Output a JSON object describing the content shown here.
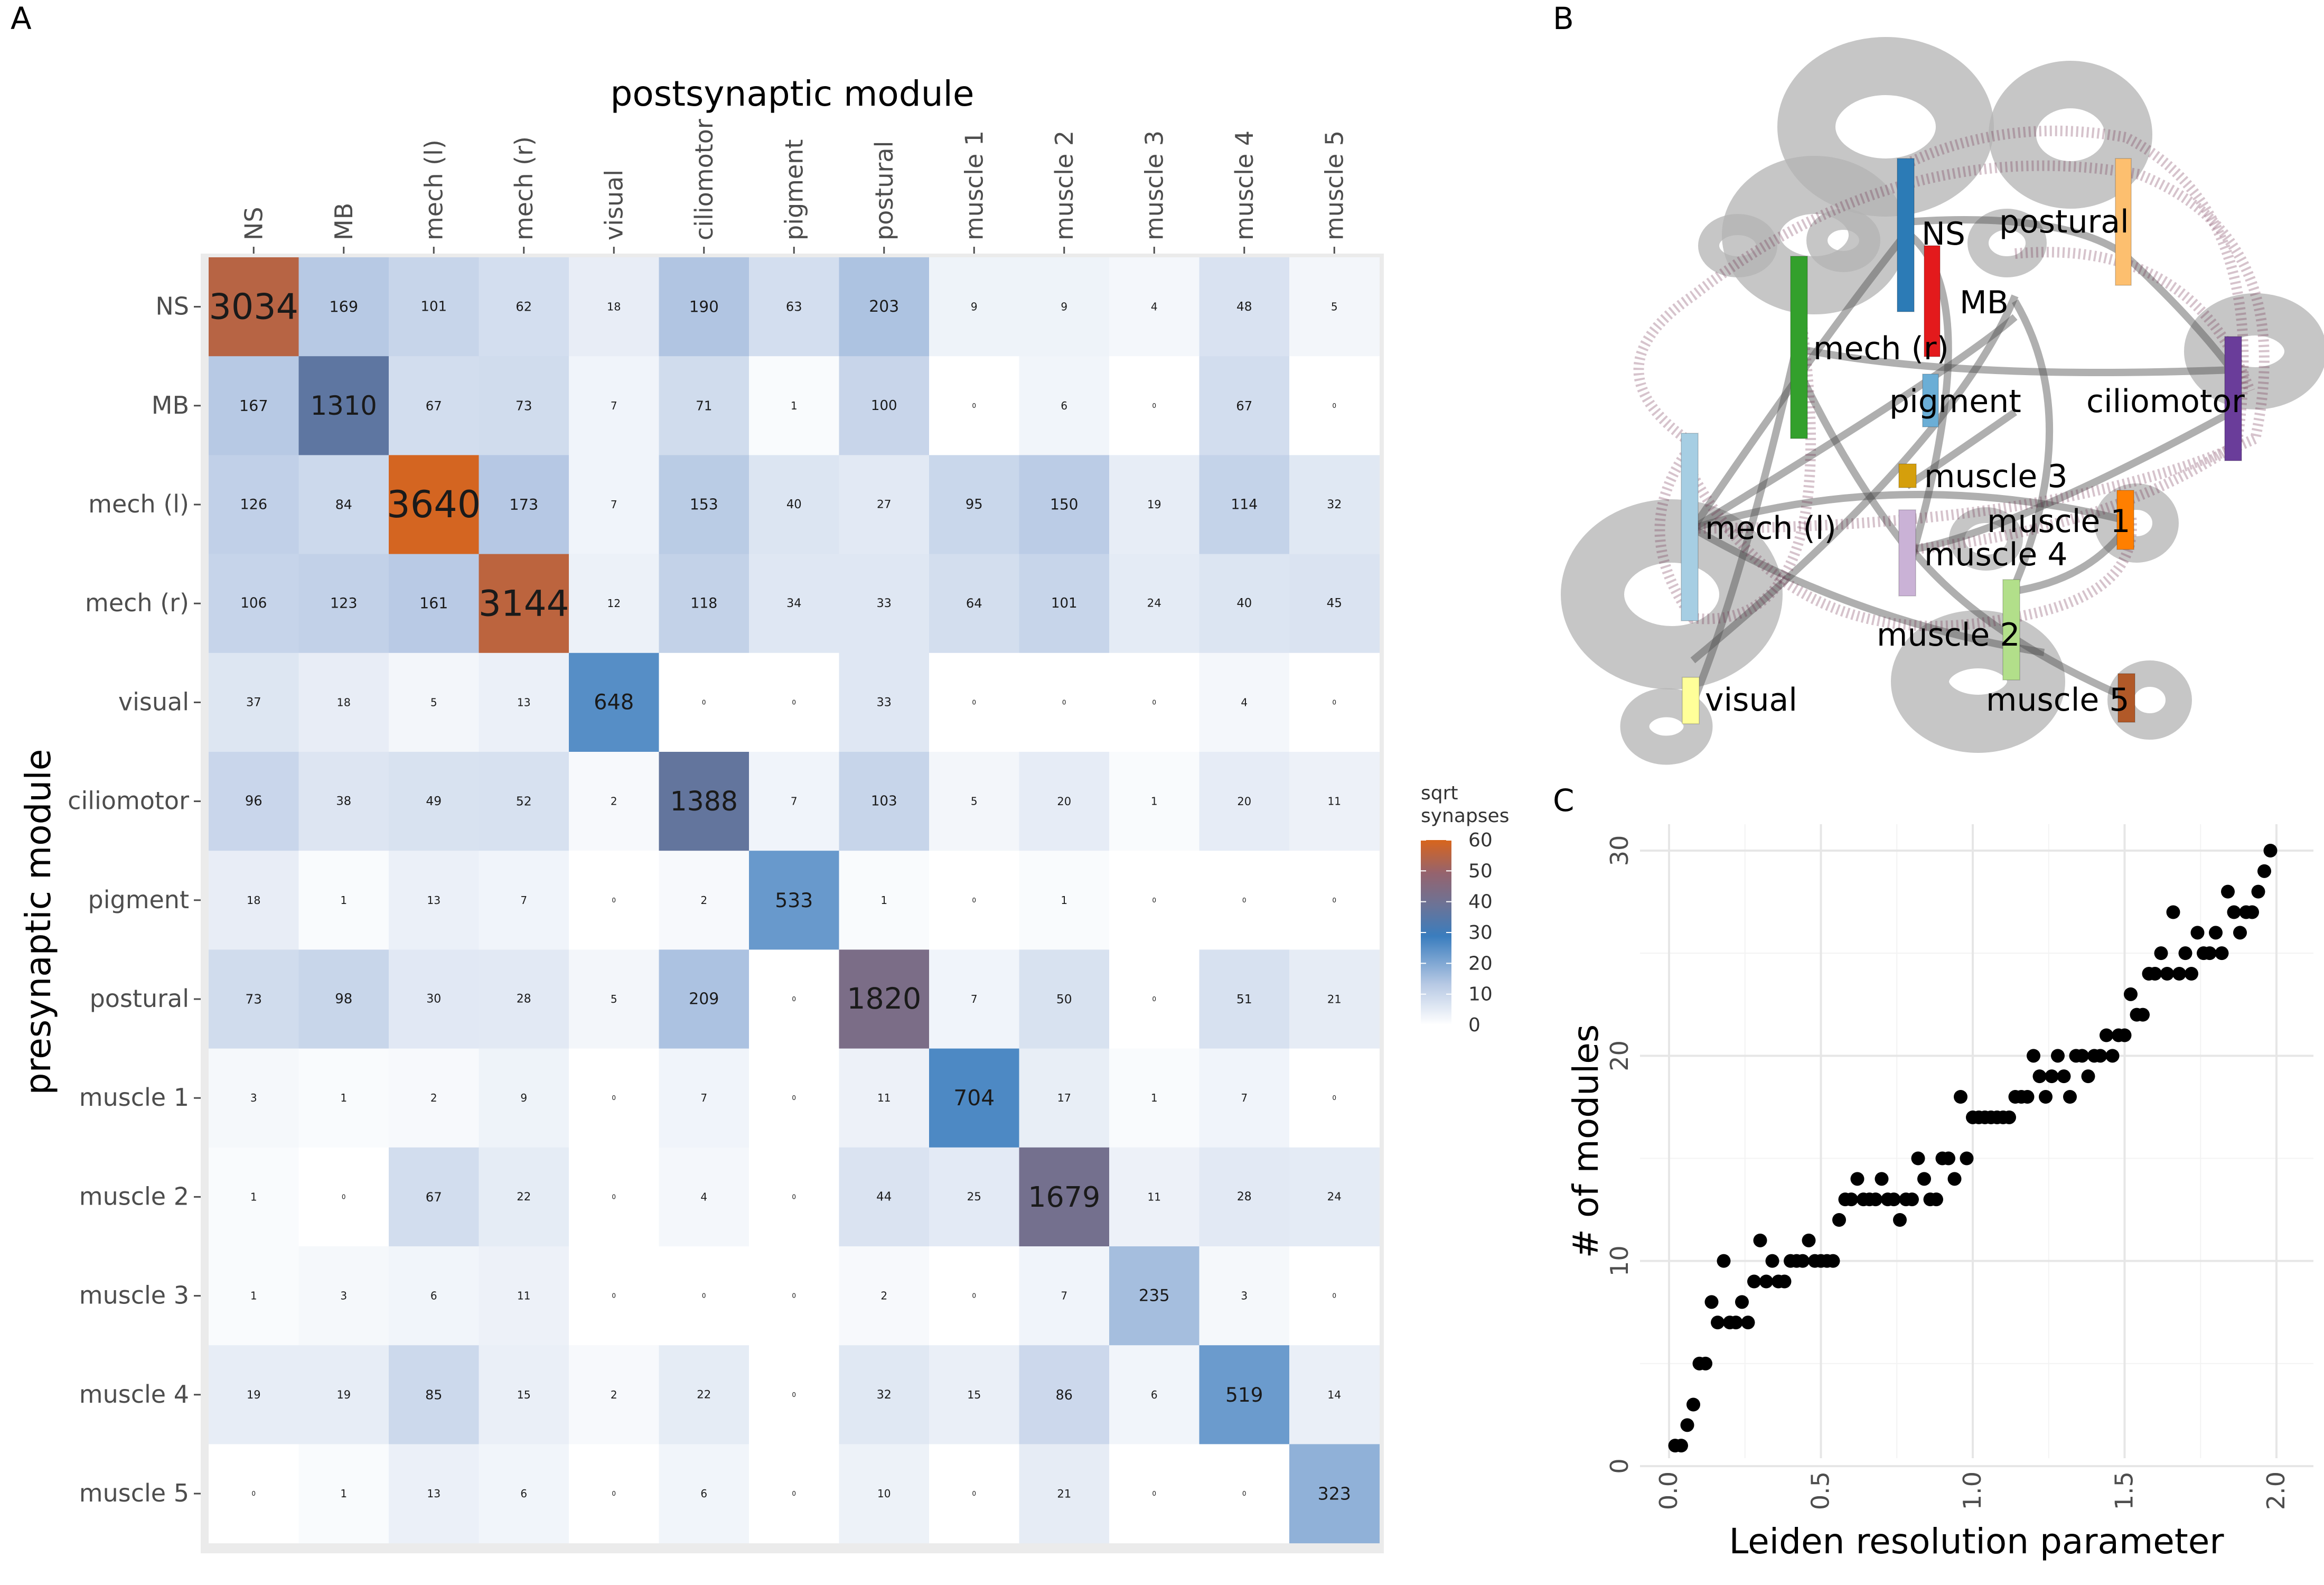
{
  "panels": {
    "a": "A",
    "b": "B",
    "c": "C"
  },
  "chart_data": [
    {
      "type": "heatmap",
      "title": "postsynaptic module",
      "xlabel": "postsynaptic module",
      "ylabel": "presynaptic module",
      "columns": [
        "NS",
        "MB",
        "mech (l)",
        "mech (r)",
        "visual",
        "ciliomotor",
        "pigment",
        "postural",
        "muscle 1",
        "muscle 2",
        "muscle 3",
        "muscle 4",
        "muscle 5"
      ],
      "rows": [
        "NS",
        "MB",
        "mech (l)",
        "mech (r)",
        "visual",
        "ciliomotor",
        "pigment",
        "postural",
        "muscle 1",
        "muscle 2",
        "muscle 3",
        "muscle 4",
        "muscle 5"
      ],
      "values": [
        [
          3034,
          169,
          101,
          62,
          18,
          190,
          63,
          203,
          9,
          9,
          4,
          48,
          5
        ],
        [
          167,
          1310,
          67,
          73,
          7,
          71,
          1,
          100,
          0,
          6,
          0,
          67,
          0
        ],
        [
          126,
          84,
          3640,
          173,
          7,
          153,
          40,
          27,
          95,
          150,
          19,
          114,
          32
        ],
        [
          106,
          123,
          161,
          3144,
          12,
          118,
          34,
          33,
          64,
          101,
          24,
          40,
          45
        ],
        [
          37,
          18,
          5,
          13,
          648,
          0,
          0,
          33,
          0,
          0,
          0,
          4,
          0
        ],
        [
          96,
          38,
          49,
          52,
          2,
          1388,
          7,
          103,
          5,
          20,
          1,
          20,
          11
        ],
        [
          18,
          1,
          13,
          7,
          0,
          2,
          533,
          1,
          0,
          1,
          0,
          0,
          0
        ],
        [
          73,
          98,
          30,
          28,
          5,
          209,
          0,
          1820,
          7,
          50,
          0,
          51,
          21
        ],
        [
          3,
          1,
          2,
          9,
          0,
          7,
          0,
          11,
          704,
          17,
          1,
          7,
          0
        ],
        [
          1,
          0,
          67,
          22,
          0,
          4,
          0,
          44,
          25,
          1679,
          11,
          28,
          24
        ],
        [
          1,
          3,
          6,
          11,
          0,
          0,
          0,
          2,
          0,
          7,
          235,
          3,
          0
        ],
        [
          19,
          19,
          85,
          15,
          2,
          22,
          0,
          32,
          15,
          86,
          6,
          519,
          14
        ],
        [
          0,
          1,
          13,
          6,
          0,
          6,
          0,
          10,
          0,
          21,
          0,
          0,
          323
        ]
      ],
      "legend": {
        "title_line1": "sqrt",
        "title_line2": "synapses",
        "ticks": [
          0,
          10,
          20,
          30,
          40,
          50,
          60
        ],
        "colors": [
          "#ffffff",
          "#b7c9e4",
          "#3a7dbe",
          "#6c7396",
          "#95636e",
          "#d8651c"
        ]
      }
    },
    {
      "type": "diagram",
      "nodes": [
        {
          "name": "NS",
          "color": "#2c7bb6"
        },
        {
          "name": "postural",
          "color": "#fdbf6f"
        },
        {
          "name": "MB",
          "color": "#e31a1c"
        },
        {
          "name": "mech (r)",
          "color": "#33a02c"
        },
        {
          "name": "pigment",
          "color": "#6baed6"
        },
        {
          "name": "ciliomotor",
          "color": "#6a3d9a"
        },
        {
          "name": "muscle 3",
          "color": "#d59f0c"
        },
        {
          "name": "mech (l)",
          "color": "#a6cee3"
        },
        {
          "name": "muscle 1",
          "color": "#ff7f00"
        },
        {
          "name": "muscle 4",
          "color": "#cab2d6"
        },
        {
          "name": "muscle 2",
          "color": "#b2df8a"
        },
        {
          "name": "visual",
          "color": "#ffff99"
        },
        {
          "name": "muscle 5",
          "color": "#b15928"
        }
      ]
    },
    {
      "type": "scatter",
      "xlabel": "Leiden resolution parameter",
      "ylabel": "# of modules",
      "xlim": [
        0,
        2
      ],
      "ylim": [
        0,
        30
      ],
      "x_ticks": [
        "0.0",
        "0.5",
        "1.0",
        "1.5",
        "2.0"
      ],
      "y_ticks": [
        "0",
        "10",
        "20",
        "30"
      ],
      "points": [
        [
          0.02,
          1
        ],
        [
          0.04,
          1
        ],
        [
          0.06,
          2
        ],
        [
          0.08,
          3
        ],
        [
          0.1,
          5
        ],
        [
          0.12,
          5
        ],
        [
          0.14,
          8
        ],
        [
          0.16,
          7
        ],
        [
          0.18,
          10
        ],
        [
          0.2,
          7
        ],
        [
          0.22,
          7
        ],
        [
          0.24,
          8
        ],
        [
          0.26,
          7
        ],
        [
          0.28,
          9
        ],
        [
          0.3,
          11
        ],
        [
          0.32,
          9
        ],
        [
          0.34,
          10
        ],
        [
          0.36,
          9
        ],
        [
          0.38,
          9
        ],
        [
          0.4,
          10
        ],
        [
          0.42,
          10
        ],
        [
          0.44,
          10
        ],
        [
          0.46,
          11
        ],
        [
          0.48,
          10
        ],
        [
          0.5,
          10
        ],
        [
          0.52,
          10
        ],
        [
          0.54,
          10
        ],
        [
          0.56,
          12
        ],
        [
          0.58,
          13
        ],
        [
          0.6,
          13
        ],
        [
          0.62,
          14
        ],
        [
          0.64,
          13
        ],
        [
          0.66,
          13
        ],
        [
          0.68,
          13
        ],
        [
          0.7,
          14
        ],
        [
          0.72,
          13
        ],
        [
          0.74,
          13
        ],
        [
          0.76,
          12
        ],
        [
          0.78,
          13
        ],
        [
          0.8,
          13
        ],
        [
          0.82,
          15
        ],
        [
          0.84,
          14
        ],
        [
          0.86,
          13
        ],
        [
          0.88,
          13
        ],
        [
          0.9,
          15
        ],
        [
          0.92,
          15
        ],
        [
          0.94,
          14
        ],
        [
          0.96,
          18
        ],
        [
          0.98,
          15
        ],
        [
          1.0,
          17
        ],
        [
          1.02,
          17
        ],
        [
          1.04,
          17
        ],
        [
          1.06,
          17
        ],
        [
          1.08,
          17
        ],
        [
          1.1,
          17
        ],
        [
          1.12,
          17
        ],
        [
          1.14,
          18
        ],
        [
          1.16,
          18
        ],
        [
          1.18,
          18
        ],
        [
          1.2,
          20
        ],
        [
          1.22,
          19
        ],
        [
          1.24,
          18
        ],
        [
          1.26,
          19
        ],
        [
          1.28,
          20
        ],
        [
          1.3,
          19
        ],
        [
          1.32,
          18
        ],
        [
          1.34,
          20
        ],
        [
          1.36,
          20
        ],
        [
          1.38,
          19
        ],
        [
          1.4,
          20
        ],
        [
          1.42,
          20
        ],
        [
          1.44,
          21
        ],
        [
          1.46,
          20
        ],
        [
          1.48,
          21
        ],
        [
          1.5,
          21
        ],
        [
          1.52,
          23
        ],
        [
          1.54,
          22
        ],
        [
          1.56,
          22
        ],
        [
          1.58,
          24
        ],
        [
          1.6,
          24
        ],
        [
          1.62,
          25
        ],
        [
          1.64,
          24
        ],
        [
          1.66,
          27
        ],
        [
          1.68,
          24
        ],
        [
          1.7,
          25
        ],
        [
          1.72,
          24
        ],
        [
          1.74,
          26
        ],
        [
          1.76,
          25
        ],
        [
          1.78,
          25
        ],
        [
          1.8,
          26
        ],
        [
          1.82,
          25
        ],
        [
          1.84,
          28
        ],
        [
          1.86,
          27
        ],
        [
          1.88,
          26
        ],
        [
          1.9,
          27
        ],
        [
          1.92,
          27
        ],
        [
          1.94,
          28
        ],
        [
          1.96,
          29
        ],
        [
          1.98,
          30
        ]
      ]
    }
  ]
}
